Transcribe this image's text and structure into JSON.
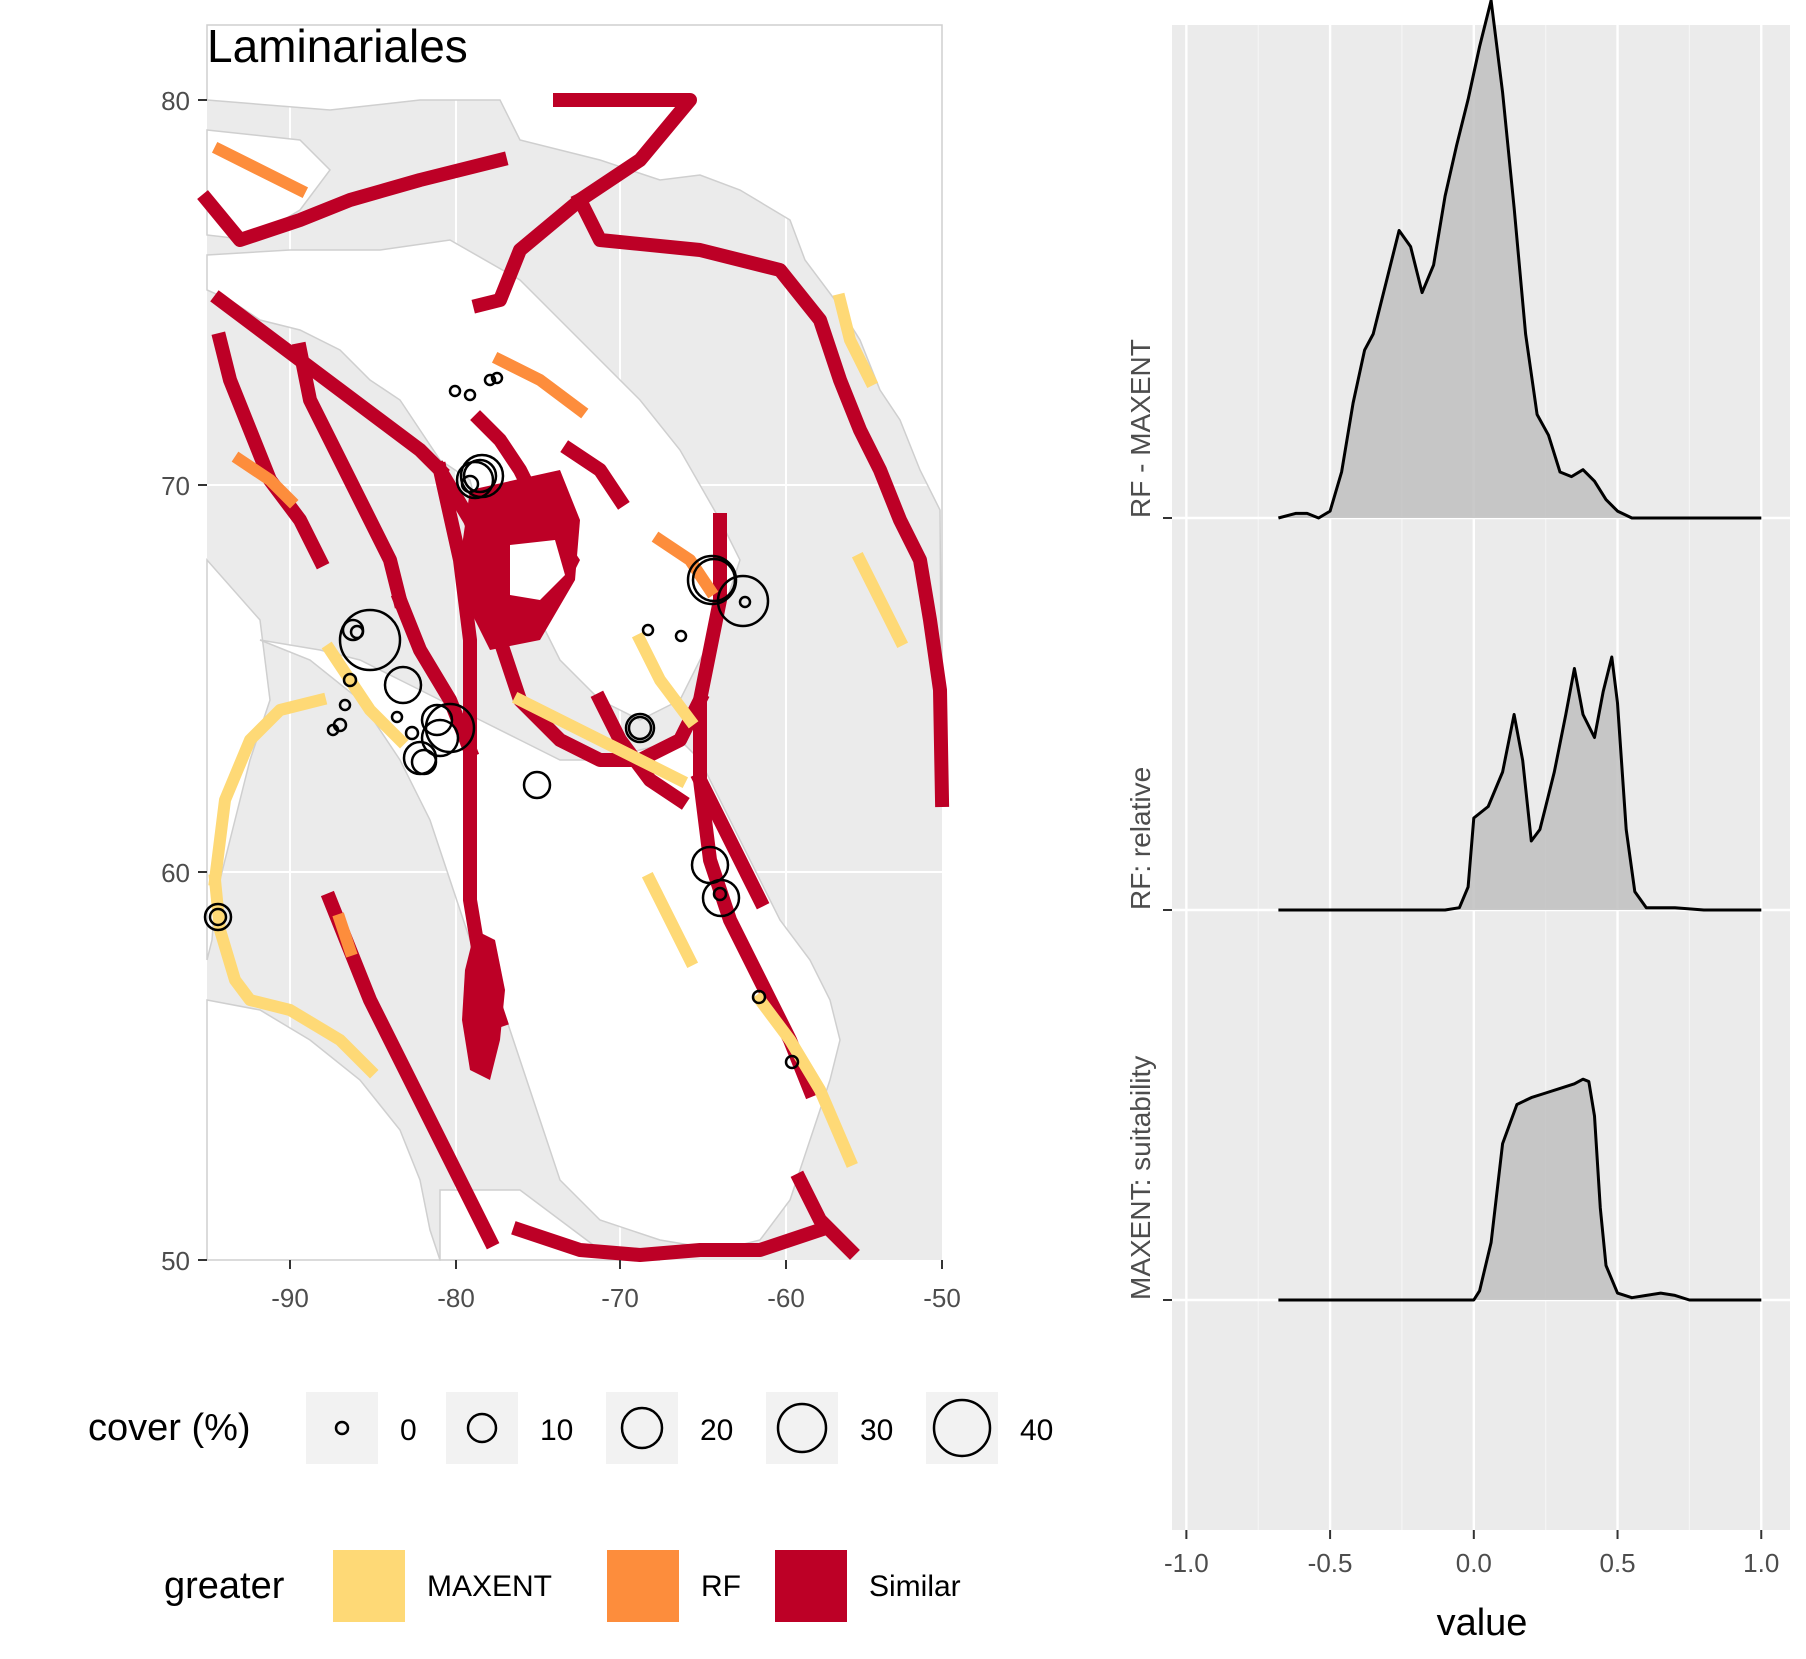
{
  "map_panel": {
    "title": "Laminariales",
    "x_ticks": [
      "-90",
      "-80",
      "-70",
      "-60",
      "-50"
    ],
    "y_ticks": [
      "80",
      "70",
      "60",
      "50"
    ],
    "colors": {
      "MAXENT": "#fed976",
      "RF": "#fd8d3c",
      "Similar": "#bd0026",
      "land": "#ffffff",
      "sea": "#ebebeb"
    }
  },
  "legend_cover": {
    "title": "cover (%)",
    "items": [
      {
        "label": "0",
        "value": 0
      },
      {
        "label": "10",
        "value": 10
      },
      {
        "label": "20",
        "value": 20
      },
      {
        "label": "30",
        "value": 30
      },
      {
        "label": "40",
        "value": 40
      }
    ]
  },
  "legend_greater": {
    "title": "greater",
    "items": [
      {
        "label": "MAXENT",
        "color": "#fed976"
      },
      {
        "label": "RF",
        "color": "#fd8d3c"
      },
      {
        "label": "Similar",
        "color": "#bd0026"
      }
    ]
  },
  "chart_data": {
    "type": "area",
    "subtype": "ridgeline-density",
    "xlabel": "value",
    "ylabel": "",
    "xlim": [
      -1.0,
      1.0
    ],
    "x_ticks": [
      "-1.0",
      "-0.5",
      "0.0",
      "0.5",
      "1.0"
    ],
    "categories": [
      "MAXENT: suitability",
      "RF: relative",
      "RF - MAXENT"
    ],
    "grid": true,
    "fill_color": "#bfbfbf",
    "series": [
      {
        "name": "MAXENT: suitability",
        "x": [
          -0.68,
          -0.2,
          0.0,
          0.02,
          0.06,
          0.1,
          0.15,
          0.2,
          0.25,
          0.3,
          0.35,
          0.38,
          0.4,
          0.42,
          0.44,
          0.46,
          0.5,
          0.55,
          0.6,
          0.65,
          0.7,
          0.75,
          0.8,
          1.0
        ],
        "y": [
          0.0,
          0.0,
          0.0,
          0.04,
          0.25,
          0.68,
          0.85,
          0.88,
          0.9,
          0.92,
          0.94,
          0.96,
          0.95,
          0.8,
          0.4,
          0.15,
          0.03,
          0.01,
          0.02,
          0.03,
          0.02,
          0.0,
          0.0,
          0.0
        ]
      },
      {
        "name": "RF: relative",
        "x": [
          -0.68,
          -0.1,
          -0.05,
          -0.02,
          0.0,
          0.05,
          0.1,
          0.14,
          0.17,
          0.2,
          0.23,
          0.25,
          0.28,
          0.32,
          0.35,
          0.38,
          0.42,
          0.45,
          0.48,
          0.5,
          0.53,
          0.56,
          0.6,
          0.7,
          0.8,
          1.0
        ],
        "y": [
          0.0,
          0.0,
          0.01,
          0.1,
          0.4,
          0.45,
          0.6,
          0.85,
          0.65,
          0.3,
          0.35,
          0.45,
          0.6,
          0.85,
          1.05,
          0.85,
          0.75,
          0.95,
          1.1,
          0.9,
          0.35,
          0.08,
          0.01,
          0.01,
          0.0,
          0.0
        ]
      },
      {
        "name": "RF - MAXENT",
        "x": [
          -0.68,
          -0.62,
          -0.58,
          -0.54,
          -0.5,
          -0.46,
          -0.42,
          -0.38,
          -0.35,
          -0.3,
          -0.26,
          -0.22,
          -0.18,
          -0.14,
          -0.1,
          -0.06,
          -0.02,
          0.02,
          0.06,
          0.1,
          0.14,
          0.18,
          0.22,
          0.26,
          0.3,
          0.34,
          0.38,
          0.42,
          0.46,
          0.5,
          0.55,
          0.6,
          0.7,
          0.8,
          1.0
        ],
        "y": [
          0.0,
          0.02,
          0.02,
          0.0,
          0.03,
          0.2,
          0.5,
          0.73,
          0.8,
          1.05,
          1.25,
          1.18,
          0.98,
          1.1,
          1.4,
          1.62,
          1.82,
          2.05,
          2.25,
          1.85,
          1.35,
          0.8,
          0.45,
          0.36,
          0.2,
          0.18,
          0.21,
          0.16,
          0.08,
          0.03,
          0.0,
          0.0,
          0.0,
          0.0,
          0.0
        ]
      }
    ]
  }
}
